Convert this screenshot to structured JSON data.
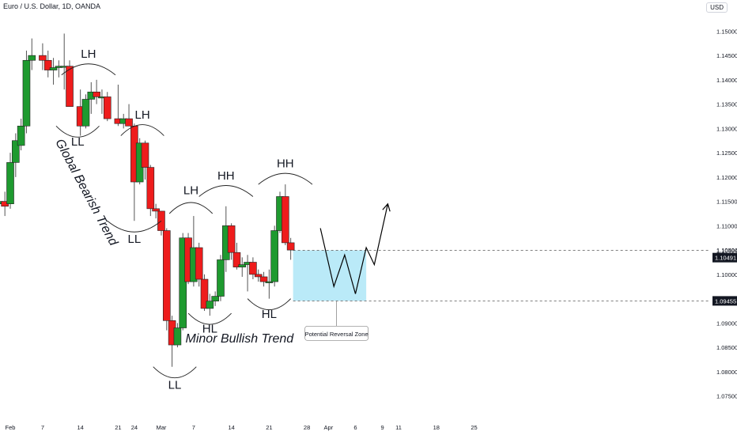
{
  "header": {
    "title": "Euro / U.S. Dollar, 1D, OANDA",
    "currency": "USD"
  },
  "chart_data": {
    "type": "candlestick",
    "title": "Euro / U.S. Dollar, 1D, OANDA",
    "ylim": [
      1.0725,
      1.1525
    ],
    "y_ticks": [
      "1.15000",
      "1.14500",
      "1.14000",
      "1.13500",
      "1.13000",
      "1.12500",
      "1.12000",
      "1.11500",
      "1.11000",
      "1.10500",
      "1.10000",
      "1.09500",
      "1.09000",
      "1.08500",
      "1.08000",
      "1.07500"
    ],
    "x_ticks": [
      {
        "day": 0,
        "label": "Feb"
      },
      {
        "day": 6,
        "label": "7"
      },
      {
        "day": 13,
        "label": "14"
      },
      {
        "day": 20,
        "label": "21"
      },
      {
        "day": 23,
        "label": "24"
      },
      {
        "day": 28,
        "label": "Mar"
      },
      {
        "day": 34,
        "label": "7"
      },
      {
        "day": 41,
        "label": "14"
      },
      {
        "day": 48,
        "label": "21"
      },
      {
        "day": 55,
        "label": "28"
      },
      {
        "day": 59,
        "label": "Apr"
      },
      {
        "day": 64,
        "label": "6"
      },
      {
        "day": 69,
        "label": "9"
      },
      {
        "day": 72,
        "label": "11"
      },
      {
        "day": 79,
        "label": "18"
      },
      {
        "day": 86,
        "label": "25"
      }
    ],
    "candles": [
      {
        "day": -2,
        "o": 1.1145,
        "h": 1.1165,
        "l": 1.1125,
        "c": 1.115
      },
      {
        "day": -1,
        "o": 1.115,
        "h": 1.117,
        "l": 1.112,
        "c": 1.114
      },
      {
        "day": 0,
        "o": 1.1145,
        "h": 1.125,
        "l": 1.1135,
        "c": 1.123
      },
      {
        "day": 1,
        "o": 1.123,
        "h": 1.129,
        "l": 1.12,
        "c": 1.1275
      },
      {
        "day": 2,
        "o": 1.1265,
        "h": 1.132,
        "l": 1.1255,
        "c": 1.1305
      },
      {
        "day": 3,
        "o": 1.1305,
        "h": 1.146,
        "l": 1.129,
        "c": 1.144
      },
      {
        "day": 4,
        "o": 1.144,
        "h": 1.1485,
        "l": 1.142,
        "c": 1.145
      },
      {
        "day": 6,
        "o": 1.145,
        "h": 1.1475,
        "l": 1.142,
        "c": 1.144
      },
      {
        "day": 7,
        "o": 1.144,
        "h": 1.146,
        "l": 1.1405,
        "c": 1.142
      },
      {
        "day": 8,
        "o": 1.142,
        "h": 1.1445,
        "l": 1.139,
        "c": 1.1425
      },
      {
        "day": 9,
        "o": 1.1425,
        "h": 1.144,
        "l": 1.1405,
        "c": 1.1428
      },
      {
        "day": 10,
        "o": 1.1428,
        "h": 1.1495,
        "l": 1.138,
        "c": 1.1428
      },
      {
        "day": 11,
        "o": 1.1428,
        "h": 1.144,
        "l": 1.1345,
        "c": 1.1345
      },
      {
        "day": 13,
        "o": 1.1345,
        "h": 1.138,
        "l": 1.1285,
        "c": 1.1305
      },
      {
        "day": 14,
        "o": 1.1305,
        "h": 1.137,
        "l": 1.13,
        "c": 1.136
      },
      {
        "day": 15,
        "o": 1.136,
        "h": 1.1395,
        "l": 1.133,
        "c": 1.1375
      },
      {
        "day": 16,
        "o": 1.1375,
        "h": 1.14,
        "l": 1.135,
        "c": 1.1365
      },
      {
        "day": 17,
        "o": 1.1365,
        "h": 1.138,
        "l": 1.133,
        "c": 1.1365
      },
      {
        "day": 18,
        "o": 1.1365,
        "h": 1.1375,
        "l": 1.1315,
        "c": 1.132
      },
      {
        "day": 20,
        "o": 1.132,
        "h": 1.139,
        "l": 1.1305,
        "c": 1.131
      },
      {
        "day": 21,
        "o": 1.131,
        "h": 1.133,
        "l": 1.13,
        "c": 1.132
      },
      {
        "day": 22,
        "o": 1.132,
        "h": 1.135,
        "l": 1.1305,
        "c": 1.1305
      },
      {
        "day": 23,
        "o": 1.1305,
        "h": 1.131,
        "l": 1.111,
        "c": 1.119
      },
      {
        "day": 24,
        "o": 1.119,
        "h": 1.128,
        "l": 1.1185,
        "c": 1.127
      },
      {
        "day": 25,
        "o": 1.127,
        "h": 1.1275,
        "l": 1.1195,
        "c": 1.122
      },
      {
        "day": 26,
        "o": 1.122,
        "h": 1.1225,
        "l": 1.112,
        "c": 1.1135
      },
      {
        "day": 27,
        "o": 1.1135,
        "h": 1.1145,
        "l": 1.1115,
        "c": 1.113
      },
      {
        "day": 28,
        "o": 1.113,
        "h": 1.113,
        "l": 1.108,
        "c": 1.109
      },
      {
        "day": 29,
        "o": 1.109,
        "h": 1.1095,
        "l": 1.0885,
        "c": 1.0905
      },
      {
        "day": 30,
        "o": 1.0905,
        "h": 1.0915,
        "l": 1.081,
        "c": 1.0855
      },
      {
        "day": 31,
        "o": 1.0855,
        "h": 1.09,
        "l": 1.085,
        "c": 1.089
      },
      {
        "day": 32,
        "o": 1.089,
        "h": 1.1085,
        "l": 1.0885,
        "c": 1.1075
      },
      {
        "day": 33,
        "o": 1.1075,
        "h": 1.1085,
        "l": 1.098,
        "c": 1.0985
      },
      {
        "day": 34,
        "o": 1.0985,
        "h": 1.112,
        "l": 1.0975,
        "c": 1.1055
      },
      {
        "day": 35,
        "o": 1.1055,
        "h": 1.1065,
        "l": 1.0975,
        "c": 1.099
      },
      {
        "day": 36,
        "o": 1.099,
        "h": 1.1,
        "l": 1.0925,
        "c": 1.093
      },
      {
        "day": 37,
        "o": 1.093,
        "h": 1.096,
        "l": 1.0915,
        "c": 1.0945
      },
      {
        "day": 38,
        "o": 1.0945,
        "h": 1.0965,
        "l": 1.0935,
        "c": 1.0955
      },
      {
        "day": 39,
        "o": 1.0955,
        "h": 1.104,
        "l": 1.0945,
        "c": 1.103
      },
      {
        "day": 40,
        "o": 1.103,
        "h": 1.114,
        "l": 1.1005,
        "c": 1.11
      },
      {
        "day": 41,
        "o": 1.11,
        "h": 1.1105,
        "l": 1.103,
        "c": 1.1045
      },
      {
        "day": 42,
        "o": 1.1045,
        "h": 1.1065,
        "l": 1.101,
        "c": 1.1015
      },
      {
        "day": 43,
        "o": 1.1015,
        "h": 1.1035,
        "l": 1.0995,
        "c": 1.102
      },
      {
        "day": 44,
        "o": 1.102,
        "h": 1.104,
        "l": 1.0965,
        "c": 1.1025
      },
      {
        "day": 45,
        "o": 1.1025,
        "h": 1.1035,
        "l": 1.099,
        "c": 1.1
      },
      {
        "day": 46,
        "o": 1.1,
        "h": 1.101,
        "l": 1.0985,
        "c": 1.0995
      },
      {
        "day": 47,
        "o": 1.0995,
        "h": 1.1005,
        "l": 1.0975,
        "c": 1.0985
      },
      {
        "day": 48,
        "o": 1.0985,
        "h": 1.101,
        "l": 1.095,
        "c": 1.0985
      },
      {
        "day": 49,
        "o": 1.0985,
        "h": 1.11,
        "l": 1.0975,
        "c": 1.109
      },
      {
        "day": 50,
        "o": 1.109,
        "h": 1.117,
        "l": 1.1085,
        "c": 1.116
      },
      {
        "day": 51,
        "o": 1.116,
        "h": 1.1185,
        "l": 1.106,
        "c": 1.1065
      },
      {
        "day": 52,
        "o": 1.1065,
        "h": 1.1075,
        "l": 1.103,
        "c": 1.105
      }
    ],
    "zone": {
      "from_day": 52,
      "to_day": 66,
      "top": 1.10494,
      "bottom": 1.09455,
      "label": "Potential Reversal Zone"
    },
    "price_levels": [
      {
        "value": 1.10494,
        "label": "1.10494",
        "style": "dashed"
      },
      {
        "value": 1.10491,
        "label": "1.10491",
        "style": "tag-dark"
      },
      {
        "value": 1.09455,
        "label": "1.09455",
        "style": "tag-dark"
      }
    ],
    "projection": [
      {
        "day": 57.5,
        "price": 1.1095
      },
      {
        "day": 60,
        "price": 1.0975
      },
      {
        "day": 62,
        "price": 1.104
      },
      {
        "day": 64,
        "price": 1.096
      },
      {
        "day": 66,
        "price": 1.1055
      },
      {
        "day": 67.5,
        "price": 1.102
      },
      {
        "day": 70,
        "price": 1.1145
      }
    ],
    "swing_labels": [
      {
        "text": "LH",
        "day": 14.5,
        "price": 1.1445,
        "arc": "cap",
        "arc_price": 1.141,
        "arc_w": 5
      },
      {
        "text": "LL",
        "day": 12.5,
        "price": 1.1265,
        "arc": "cup",
        "arc_price": 1.1305,
        "arc_w": 4
      },
      {
        "text": "LH",
        "day": 24.5,
        "price": 1.132,
        "arc": "cap",
        "arc_price": 1.1285,
        "arc_w": 4
      },
      {
        "text": "LL",
        "day": 23,
        "price": 1.1065,
        "arc": "cup",
        "arc_price": 1.111,
        "arc_w": 5
      },
      {
        "text": "LH",
        "day": 33.5,
        "price": 1.1165,
        "arc": "cap",
        "arc_price": 1.1125,
        "arc_w": 4
      },
      {
        "text": "LL",
        "day": 30.5,
        "price": 1.0765,
        "arc": "cup",
        "arc_price": 1.081,
        "arc_w": 4
      },
      {
        "text": "HH",
        "day": 40,
        "price": 1.1195,
        "arc": "cap",
        "arc_price": 1.116,
        "arc_w": 5
      },
      {
        "text": "HL",
        "day": 37,
        "price": 1.088,
        "arc": "cup",
        "arc_price": 1.092,
        "arc_w": 4
      },
      {
        "text": "HH",
        "day": 51,
        "price": 1.122,
        "arc": "cap",
        "arc_price": 1.1185,
        "arc_w": 5
      },
      {
        "text": "HL",
        "day": 48,
        "price": 1.091,
        "arc": "cup",
        "arc_price": 1.095,
        "arc_w": 4
      }
    ],
    "annotations": [
      {
        "text": "Global Bearish Trend",
        "day": 13.5,
        "price": 1.1165,
        "rotate": 62
      },
      {
        "text": "Minor Bullish Trend",
        "day": 42.5,
        "price": 1.086,
        "rotate": 0
      }
    ],
    "colors": {
      "up": "#1e9a2f",
      "down": "#ee1c1c",
      "zone": "#b3e8f7",
      "text": "#131722",
      "axis_text": "#131722",
      "line": "#000000"
    },
    "grid": false
  }
}
